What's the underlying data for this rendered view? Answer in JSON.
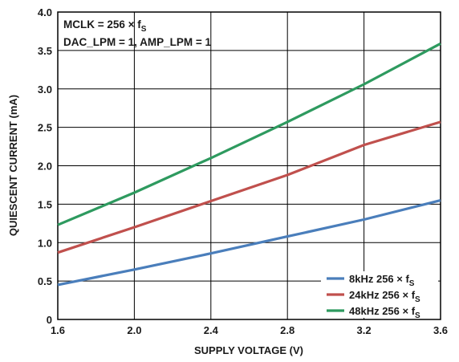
{
  "chart_data": {
    "type": "line",
    "xlabel": "SUPPLY VOLTAGE (V)",
    "ylabel": "QUIESCENT CURRENT (mA)",
    "xlim": [
      1.6,
      3.6
    ],
    "ylim": [
      0,
      4.0
    ],
    "xticks": [
      "1.6",
      "2.0",
      "2.4",
      "2.8",
      "3.2",
      "3.6"
    ],
    "yticks": [
      "0",
      "0.5",
      "1.0",
      "1.5",
      "2.0",
      "2.5",
      "3.0",
      "3.5",
      "4.0"
    ],
    "grid": true,
    "legend_position": "bottom-right",
    "annotations": [
      {
        "main": "MCLK = 256 × f",
        "sub": "S"
      },
      {
        "main": "DAC_LPM = 1, AMP_LPM = 1",
        "sub": ""
      }
    ],
    "series": [
      {
        "name": "8kHz 256 × f",
        "name_sub": "S",
        "color": "#4a7ebb",
        "x": [
          1.6,
          2.0,
          2.4,
          2.8,
          3.2,
          3.6
        ],
        "y": [
          0.45,
          0.65,
          0.86,
          1.08,
          1.3,
          1.55
        ]
      },
      {
        "name": "24kHz 256 × f",
        "name_sub": "S",
        "color": "#c0504d",
        "x": [
          1.6,
          2.0,
          2.4,
          2.8,
          3.2,
          3.6
        ],
        "y": [
          0.87,
          1.2,
          1.54,
          1.88,
          2.27,
          2.57
        ]
      },
      {
        "name": "48kHz 256 × f",
        "name_sub": "S",
        "color": "#2e9a5f",
        "x": [
          1.6,
          2.0,
          2.4,
          2.8,
          3.2,
          3.6
        ],
        "y": [
          1.23,
          1.65,
          2.1,
          2.57,
          3.06,
          3.59
        ]
      }
    ]
  }
}
